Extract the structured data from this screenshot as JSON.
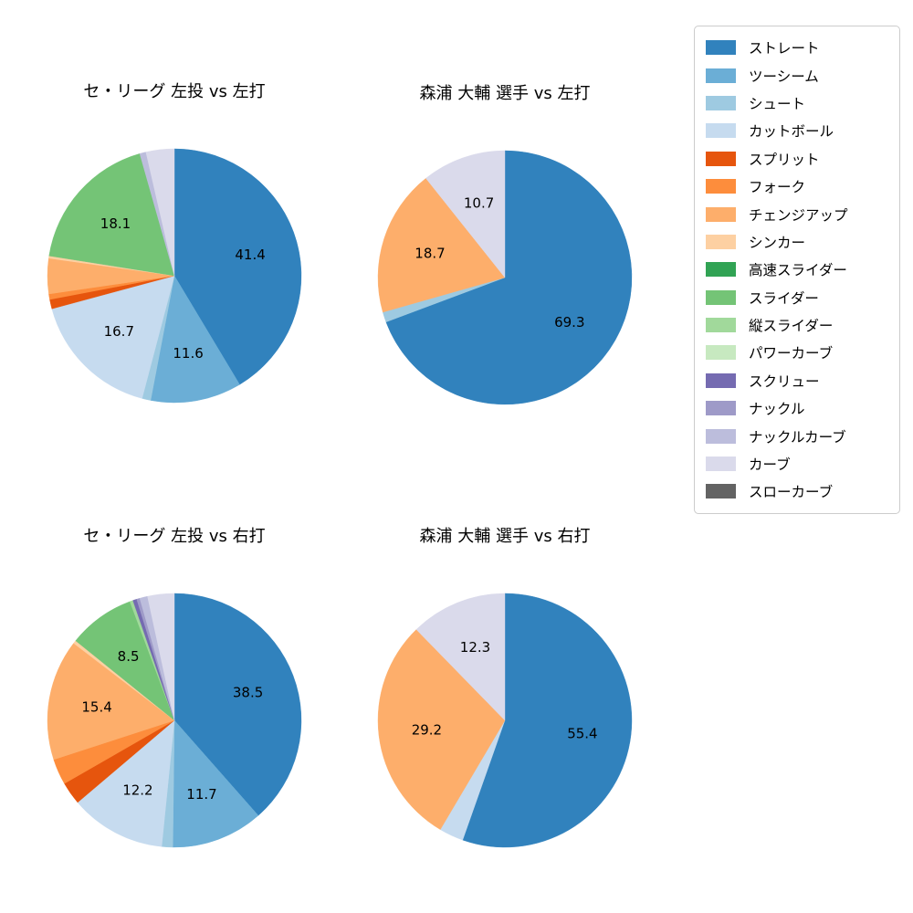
{
  "figure": {
    "background": "#ffffff"
  },
  "legend": {
    "position": "top-right",
    "items": [
      {
        "label": "ストレート",
        "color": "#3182bd"
      },
      {
        "label": "ツーシーム",
        "color": "#6baed6"
      },
      {
        "label": "シュート",
        "color": "#9ecae1"
      },
      {
        "label": "カットボール",
        "color": "#c6dbef"
      },
      {
        "label": "スプリット",
        "color": "#e6550d"
      },
      {
        "label": "フォーク",
        "color": "#fd8d3c"
      },
      {
        "label": "チェンジアップ",
        "color": "#fdae6b"
      },
      {
        "label": "シンカー",
        "color": "#fdd0a2"
      },
      {
        "label": "高速スライダー",
        "color": "#31a354"
      },
      {
        "label": "スライダー",
        "color": "#74c476"
      },
      {
        "label": "縦スライダー",
        "color": "#a1d99b"
      },
      {
        "label": "パワーカーブ",
        "color": "#c7e9c0"
      },
      {
        "label": "スクリュー",
        "color": "#756bb1"
      },
      {
        "label": "ナックル",
        "color": "#9e9ac8"
      },
      {
        "label": "ナックルカーブ",
        "color": "#bcbddc"
      },
      {
        "label": "カーブ",
        "color": "#dadaeb"
      },
      {
        "label": "スローカーブ",
        "color": "#636363"
      }
    ]
  },
  "chart_data": [
    {
      "type": "pie",
      "title": "セ・リーグ 左投 vs 左打",
      "start": "top",
      "direction": "clockwise",
      "slices": [
        {
          "name": "ストレート",
          "value": 41.4,
          "label": "41.4"
        },
        {
          "name": "ツーシーム",
          "value": 11.6,
          "label": "11.6"
        },
        {
          "name": "シュート",
          "value": 1.1,
          "label": ""
        },
        {
          "name": "カットボール",
          "value": 16.7,
          "label": "16.7"
        },
        {
          "name": "スプリット",
          "value": 1.2,
          "label": ""
        },
        {
          "name": "フォーク",
          "value": 0.7,
          "label": ""
        },
        {
          "name": "チェンジアップ",
          "value": 4.5,
          "label": ""
        },
        {
          "name": "シンカー",
          "value": 0.3,
          "label": ""
        },
        {
          "name": "スライダー",
          "value": 18.1,
          "label": "18.1"
        },
        {
          "name": "ナックルカーブ",
          "value": 0.8,
          "label": ""
        },
        {
          "name": "カーブ",
          "value": 3.6,
          "label": ""
        }
      ]
    },
    {
      "type": "pie",
      "title": "森浦 大輔 選手 vs 左打",
      "start": "top",
      "direction": "clockwise",
      "slices": [
        {
          "name": "ストレート",
          "value": 69.3,
          "label": "69.3"
        },
        {
          "name": "シュート",
          "value": 1.3,
          "label": ""
        },
        {
          "name": "チェンジアップ",
          "value": 18.7,
          "label": "18.7"
        },
        {
          "name": "カーブ",
          "value": 10.7,
          "label": "10.7"
        }
      ]
    },
    {
      "type": "pie",
      "title": "セ・リーグ 左投 vs 右打",
      "start": "top",
      "direction": "clockwise",
      "slices": [
        {
          "name": "ストレート",
          "value": 38.5,
          "label": "38.5"
        },
        {
          "name": "ツーシーム",
          "value": 11.7,
          "label": "11.7"
        },
        {
          "name": "シュート",
          "value": 1.4,
          "label": ""
        },
        {
          "name": "カットボール",
          "value": 12.2,
          "label": "12.2"
        },
        {
          "name": "スプリット",
          "value": 2.9,
          "label": ""
        },
        {
          "name": "フォーク",
          "value": 3.3,
          "label": ""
        },
        {
          "name": "チェンジアップ",
          "value": 15.4,
          "label": "15.4"
        },
        {
          "name": "シンカー",
          "value": 0.4,
          "label": ""
        },
        {
          "name": "スライダー",
          "value": 8.5,
          "label": "8.5"
        },
        {
          "name": "縦スライダー",
          "value": 0.4,
          "label": ""
        },
        {
          "name": "スクリュー",
          "value": 0.5,
          "label": ""
        },
        {
          "name": "ナックル",
          "value": 0.4,
          "label": ""
        },
        {
          "name": "ナックルカーブ",
          "value": 1.0,
          "label": ""
        },
        {
          "name": "カーブ",
          "value": 3.4,
          "label": ""
        }
      ]
    },
    {
      "type": "pie",
      "title": "森浦 大輔 選手 vs 右打",
      "start": "top",
      "direction": "clockwise",
      "slices": [
        {
          "name": "ストレート",
          "value": 55.4,
          "label": "55.4"
        },
        {
          "name": "カットボール",
          "value": 3.1,
          "label": ""
        },
        {
          "name": "チェンジアップ",
          "value": 29.2,
          "label": "29.2"
        },
        {
          "name": "カーブ",
          "value": 12.3,
          "label": "12.3"
        }
      ]
    }
  ]
}
